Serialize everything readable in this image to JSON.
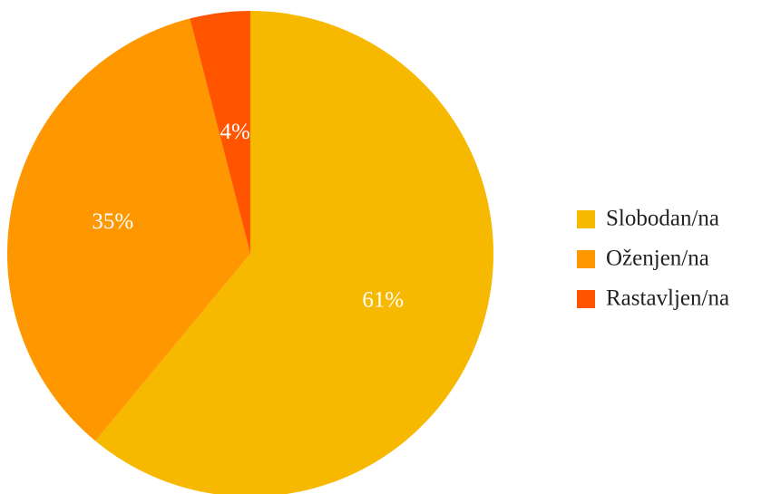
{
  "chart_data": {
    "type": "pie",
    "title": "",
    "start_angle_deg": 0,
    "direction": "clockwise",
    "legend_position": "right",
    "slices": [
      {
        "label": "Slobodan/na",
        "value": 61,
        "value_label": "61%",
        "color": "#F6B900"
      },
      {
        "label": "Oženjen/na",
        "value": 35,
        "value_label": "35%",
        "color": "#FF9800"
      },
      {
        "label": "Rastavljen/na",
        "value": 4,
        "value_label": "4%",
        "color": "#FF5400"
      }
    ]
  }
}
